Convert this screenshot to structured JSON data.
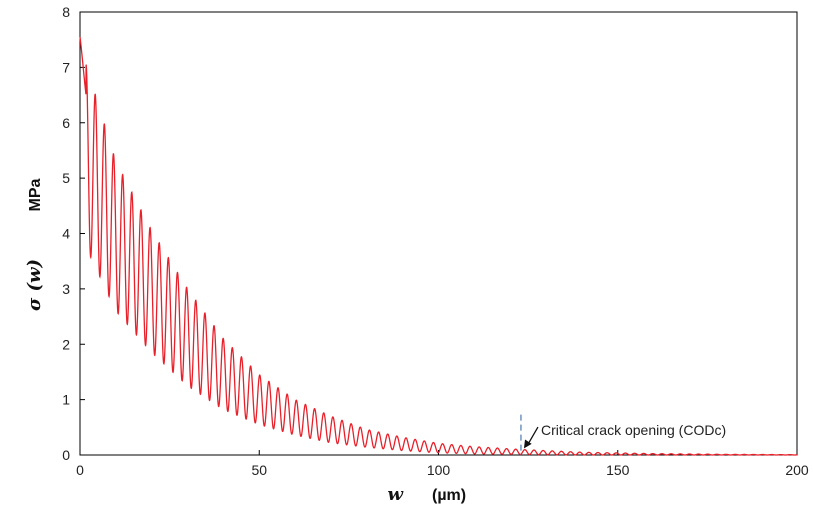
{
  "chart_data": {
    "type": "line",
    "xlabel": "w",
    "xunit": "(µm)",
    "ylabel": "σ (w)",
    "yunit": "MPa",
    "xlim": [
      0,
      200
    ],
    "ylim": [
      0,
      8
    ],
    "x_ticks": [
      "0",
      "50",
      "100",
      "150",
      "200"
    ],
    "y_ticks": [
      "0",
      "1",
      "2",
      "3",
      "4",
      "5",
      "6",
      "7",
      "8"
    ],
    "grid": false,
    "line_color": "#e8202a",
    "marker_color": "#4a7ab0",
    "series": [
      {
        "x": [
          0,
          1.7,
          10,
          20,
          30,
          40,
          50,
          60,
          70,
          80,
          90,
          100,
          110,
          123,
          140,
          160,
          180,
          200
        ],
        "envelope_upper": [
          7.55,
          7.05,
          5.3,
          4.05,
          3.0,
          2.1,
          1.45,
          1.0,
          0.7,
          0.46,
          0.32,
          0.21,
          0.15,
          0.1,
          0.05,
          0.025,
          0.012,
          0.006
        ],
        "envelope_lower": [
          3.8,
          3.75,
          2.6,
          1.85,
          1.25,
          0.82,
          0.55,
          0.36,
          0.22,
          0.14,
          0.08,
          0.04,
          0.02,
          0.01,
          0.0,
          0.0,
          0.0,
          0.0
        ],
        "oscillation_period": 2.55
      }
    ],
    "annotations": [
      {
        "text": "Critical crack opening (CODc)",
        "x": 123
      }
    ]
  }
}
